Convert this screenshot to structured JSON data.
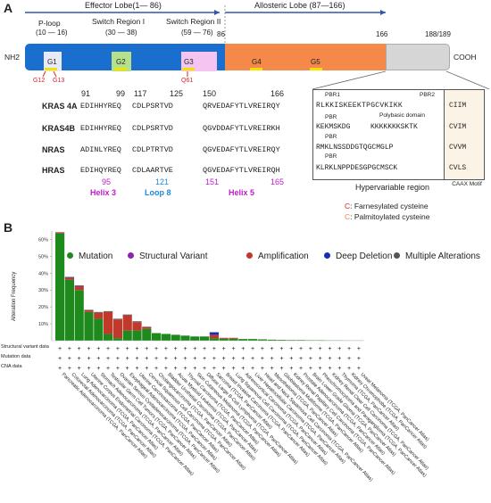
{
  "panel_a": {
    "letter": "A",
    "lobes": [
      {
        "label": "Effector Lobe(1— 86)"
      },
      {
        "label": "Allosteric Lobe  (87—166)"
      }
    ],
    "regions": [
      {
        "name": "P-loop",
        "range": "(10 — 16)"
      },
      {
        "name": "Switch Region I",
        "range": "(30 — 38)"
      },
      {
        "name": "Switch Region II",
        "range": "(59 — 76)"
      }
    ],
    "positions": {
      "p86": "86",
      "p166": "166",
      "p188": "188/189"
    },
    "termini": {
      "n": "NH2",
      "c": "COOH"
    },
    "g_boxes": [
      "G1",
      "G2",
      "G3",
      "G4",
      "G5"
    ],
    "mutations": {
      "g12": "G12",
      "g13": "G13",
      "q61": "Q61"
    },
    "colors": {
      "blue": "#1a6fce",
      "orange": "#f5894a",
      "grey": "#d6d6d6",
      "green": "#b5e08c",
      "pink": "#f5c4f0",
      "yellow": "#f2e300",
      "red": "#d9232a",
      "magenta": "#c21bcc"
    },
    "seq_positions_top": [
      "91",
      "99",
      "117",
      "125",
      "150",
      "166"
    ],
    "seq_rows": [
      {
        "name": "KRAS 4A",
        "s1": "EDIHHYREQ",
        "s2": "CDLPSRTVD",
        "s3": "QRVEDAFYTLVREIRQY"
      },
      {
        "name": "KRAS4B",
        "s1": "EDIHHYREQ",
        "s2": "CDLPSRTVD",
        "s3": "QGVDDAFYTLVREIRKH"
      },
      {
        "name": "NRAS",
        "s1": "ADINLYREQ",
        "s2": "CDLPTRTVD",
        "s3": "QGVEDAFYTLVREIRQY"
      },
      {
        "name": "HRAS",
        "s1": "EDIHQYREQ",
        "s2": "CDLAARTVE",
        "s3": "QGVEDAFYTLVREIRQH"
      }
    ],
    "seq_positions_bottom": [
      "95",
      "121",
      "151",
      "165"
    ],
    "helix_labels": [
      "Helix 3",
      "Loop 8",
      "Helix 5"
    ],
    "hvr_tags": [
      "PBR1",
      "PBR2",
      "PBR",
      "Polybasic domain",
      "PBR",
      "PBR"
    ],
    "hvr_rows": [
      {
        "seq": "RLKKISKEEKTPGCVKIKK",
        "caax": "CIIM"
      },
      {
        "seq": "KKKKKKKSKTK",
        "pre": "KEKMSKDG",
        "caax": "CVIM"
      },
      {
        "seq": "RMKLNSSDDGTQGCMGLP",
        "caax": "CVVM"
      },
      {
        "seq": "KLRKLNPPDESGPGCMSCK",
        "caax": "CVLS"
      }
    ],
    "hvr_label": "Hypervariable region",
    "caax_label": "CAAX Motif",
    "legend": [
      {
        "c": "C",
        "text": ": Farnesylated cysteine"
      },
      {
        "c": "C",
        "text": ": Palmitoylated cysteine"
      }
    ]
  },
  "panel_b": {
    "letter": "B",
    "y_axis_label": "Alteration Frequency",
    "legend": [
      {
        "label": "Mutation",
        "color": "#1e8a1e"
      },
      {
        "label": "Structural Variant",
        "color": "#8e24aa"
      },
      {
        "label": "Amplification",
        "color": "#c0392b"
      },
      {
        "label": "Deep Deletion",
        "color": "#1a2bb8"
      },
      {
        "label": "Multiple Alterations",
        "color": "#555555"
      }
    ],
    "track_labels": [
      "Structural variant data",
      "Mutation data",
      "CNA data"
    ],
    "track_mark": "+"
  },
  "chart_data": {
    "type": "bar",
    "title": "",
    "xlabel": "",
    "ylabel": "Alteration Frequency",
    "ylim": [
      0,
      65
    ],
    "yticks": [
      "60%",
      "50%",
      "40%",
      "30%",
      "20%",
      "10%"
    ],
    "categories": [
      "Pancreatic Adenocarcinoma (TCGA, PanCancer Atlas)",
      "Colorectal Adenocarcinoma (TCGA, PanCancer Atlas)",
      "Lung Adenocarcinoma (TCGA, PanCancer Atlas)",
      "Uterine Corpus Endometrial Carcinoma (TCGA, PanCancer Atlas)",
      "Stomach Adenocarcinoma (TCGA, PanCancer Atlas)",
      "Testicular Germ Cell Tumors (TCGA, PanCancer Atlas)",
      "Ovarian Serous Cystadenocarcinoma (TCGA, PanCancer Atlas)",
      "Esophageal Adenocarcinoma (TCGA, PanCancer Atlas)",
      "Uterine Carcinosarcoma (TCGA, PanCancer Atlas)",
      "Cervical Squamous Cell Carcinoma (TCGA, PanCancer Atlas)",
      "Cholangiocarcinoma (TCGA, PanCancer Atlas)",
      "Bladder Urothelial Carcinoma (TCGA, PanCancer Atlas)",
      "Acute Myeloid Leukemia (TCGA, PanCancer Atlas)",
      "Thyroid Carcinoma (TCGA, PanCancer Atlas)",
      "Skin Cutaneous Melanoma (TCGA, PanCancer Atlas)",
      "Diffuse Large B-Cell Lymphoma (TCGA, PanCancer Atlas)",
      "Sarcoma (TCGA, PanCancer Atlas)",
      "Breast Invasive Carcinoma (TCGA, PanCancer Atlas)",
      "Lung Squamous Cell Carcinoma (TCGA, PanCancer Atlas)",
      "Adrenocortical Carcinoma (TCGA, PanCancer Atlas)",
      "Liver Hepatocellular Carcinoma (TCGA, PanCancer Atlas)",
      "Head and Neck Squamous Cell Carcinoma (TCGA, PanCancer Atlas)",
      "Mesothelioma (TCGA, PanCancer Atlas)",
      "Glioblastoma Multiforme (TCGA, PanCancer Atlas)",
      "Kidney Renal Papillary Cell Carcinoma (TCGA, PanCancer Atlas)",
      "Prostate Adenocarcinoma (TCGA, PanCancer Atlas)",
      "Brain Lower Grade Glioma (TCGA, PanCancer Atlas)",
      "Pheochromocytoma and Paraganglioma (TCGA, PanCancer Atlas)",
      "Kidney Renal Clear Cell Carcinoma (TCGA, PanCancer Atlas)",
      "Thymoma (TCGA, PanCancer Atlas)",
      "Kidney Chromophobe (TCGA, PanCancer Atlas)",
      "Uveal Melanoma (TCGA, PanCancer Atlas)"
    ],
    "series": [
      {
        "name": "Mutation",
        "values": [
          63.5,
          36,
          30,
          17,
          13,
          4,
          1.5,
          6,
          6,
          7,
          4.5,
          4,
          3.5,
          3,
          2.5,
          2.5,
          1.5,
          1.2,
          1.2,
          1.0,
          1.0,
          0.8,
          0.6,
          0.5,
          0.4,
          0.4,
          0.3,
          0.3,
          0.2,
          0.2,
          0.1,
          0.1
        ]
      },
      {
        "name": "Structural Variant",
        "values": [
          0,
          0.3,
          0.3,
          0,
          0,
          0,
          0,
          0,
          0,
          0,
          0,
          0,
          0,
          0,
          0,
          0,
          0,
          0,
          0,
          0,
          0,
          0,
          0,
          0,
          0,
          0,
          0,
          0,
          0,
          0,
          0,
          0
        ]
      },
      {
        "name": "Amplification",
        "values": [
          0.5,
          1,
          2,
          1,
          3.5,
          13,
          11,
          9,
          5,
          1,
          0,
          0,
          0,
          0,
          0,
          0,
          2,
          0.5,
          0.5,
          0,
          0,
          0,
          0,
          0,
          0,
          0,
          0,
          0,
          0,
          0,
          0,
          0
        ]
      },
      {
        "name": "Deep Deletion",
        "values": [
          0,
          0,
          0,
          0,
          0,
          0,
          0,
          0,
          0,
          0,
          0,
          0,
          0,
          0,
          0,
          0,
          1.5,
          0,
          0,
          0,
          0,
          0,
          0,
          0,
          0,
          0,
          0,
          0,
          0,
          0,
          0,
          0
        ]
      },
      {
        "name": "Multiple Alterations",
        "values": [
          0.3,
          0.5,
          0.5,
          0.3,
          0.5,
          0.5,
          0.5,
          0.5,
          0.5,
          0.3,
          0,
          0,
          0,
          0,
          0,
          0,
          0,
          0,
          0,
          0,
          0,
          0,
          0,
          0,
          0,
          0,
          0,
          0,
          0,
          0,
          0,
          0
        ]
      }
    ]
  }
}
